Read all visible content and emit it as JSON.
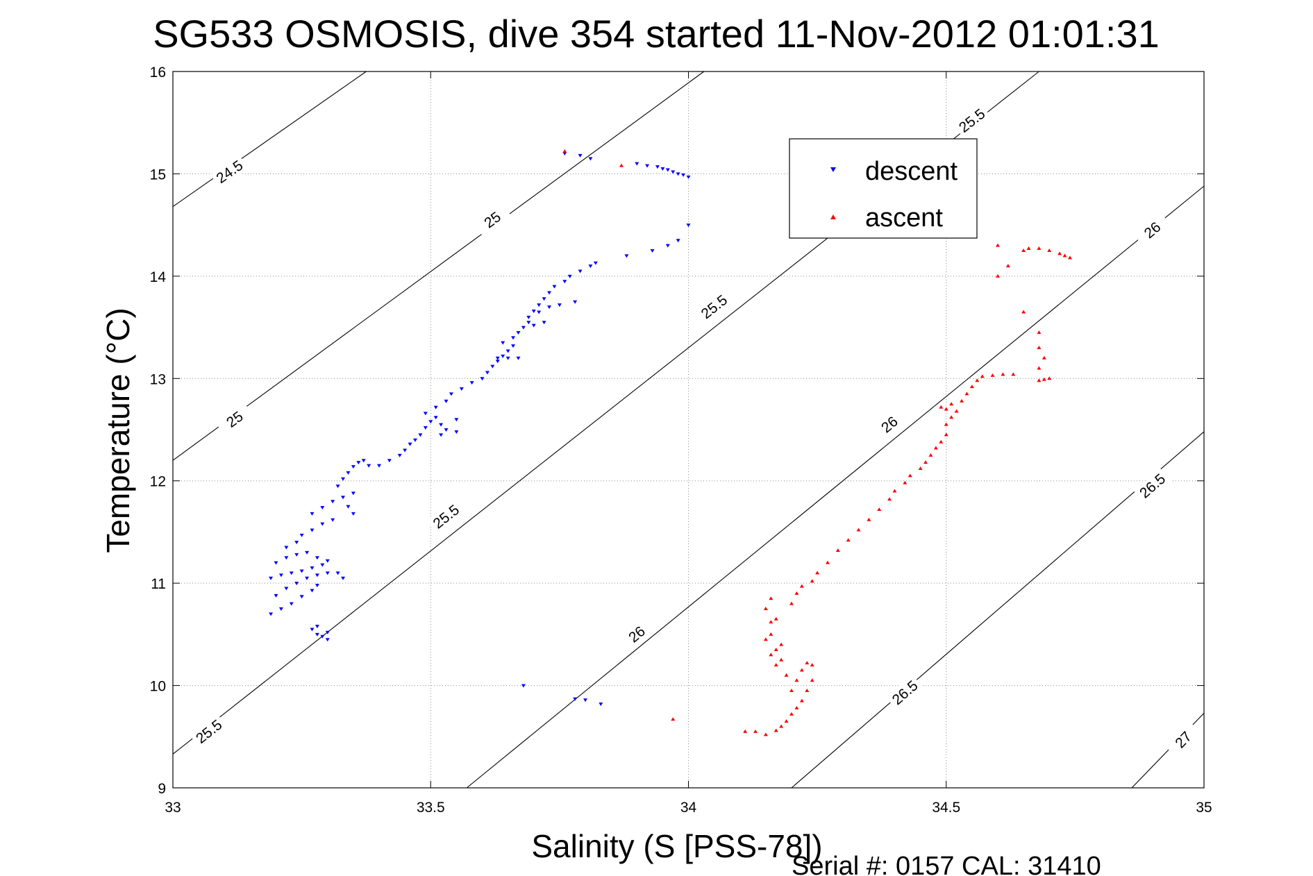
{
  "chart_data": {
    "type": "scatter",
    "title": "SG533 OSMOSIS, dive 354 started 11-Nov-2012 01:01:31",
    "xlabel": "Salinity (S [PSS-78])",
    "ylabel": "Temperature (°C)",
    "footer": "Serial #: 0157  CAL: 31410",
    "xlim": [
      33,
      35
    ],
    "ylim": [
      9,
      16
    ],
    "x_ticks": [
      "33",
      "33.5",
      "34",
      "34.5",
      "35"
    ],
    "x_tick_values": [
      33,
      33.5,
      34,
      34.5,
      35
    ],
    "y_ticks": [
      "9",
      "10",
      "11",
      "12",
      "13",
      "14",
      "15",
      "16"
    ],
    "y_tick_values": [
      9,
      10,
      11,
      12,
      13,
      14,
      15,
      16
    ],
    "grid": true,
    "legend_position": "top-right",
    "legend": [
      {
        "name": "descent",
        "color": "#0000ff",
        "marker": "triangle-down"
      },
      {
        "name": "ascent",
        "color": "#ff0000",
        "marker": "triangle-up"
      }
    ],
    "contour_color": "#000000",
    "contours": [
      {
        "p1": [
          33.0,
          14.68
        ],
        "p2": [
          33.375,
          16.0
        ],
        "labels": [
          {
            "text": "24.5",
            "at": [
              33.11,
              15.02
            ]
          }
        ]
      },
      {
        "p1": [
          33.0,
          12.2
        ],
        "p2": [
          34.03,
          16.0
        ],
        "labels": [
          {
            "text": "25",
            "at": [
              33.12,
              12.6
            ]
          },
          {
            "text": "25",
            "at": [
              33.62,
              14.55
            ]
          }
        ]
      },
      {
        "p1": [
          33.0,
          9.33
        ],
        "p2": [
          34.68,
          16.0
        ],
        "labels": [
          {
            "text": "25.5",
            "at": [
              33.07,
              9.55
            ]
          },
          {
            "text": "25.5",
            "at": [
              33.53,
              11.65
            ]
          },
          {
            "text": "25.5",
            "at": [
              34.05,
              13.7
            ]
          },
          {
            "text": "25.5",
            "at": [
              34.55,
              15.52
            ]
          }
        ]
      },
      {
        "p1": [
          33.57,
          9.0
        ],
        "p2": [
          35.0,
          14.88
        ],
        "labels": [
          {
            "text": "26",
            "at": [
              33.9,
              10.5
            ]
          },
          {
            "text": "26",
            "at": [
              34.39,
              12.55
            ]
          },
          {
            "text": "26",
            "at": [
              34.9,
              14.45
            ]
          }
        ]
      },
      {
        "p1": [
          34.2,
          9.0
        ],
        "p2": [
          35.0,
          12.48
        ],
        "labels": [
          {
            "text": "26.5",
            "at": [
              34.42,
              9.93
            ]
          },
          {
            "text": "26.5",
            "at": [
              34.9,
              11.95
            ]
          }
        ]
      },
      {
        "p1": [
          34.86,
          9.0
        ],
        "p2": [
          35.0,
          9.73
        ],
        "labels": [
          {
            "text": "27",
            "at": [
              34.96,
              9.47
            ]
          }
        ]
      }
    ],
    "series": [
      {
        "name": "descent",
        "color": "#0000ff",
        "marker": "triangle-down",
        "points": [
          [
            33.19,
            10.7
          ],
          [
            33.21,
            10.75
          ],
          [
            33.23,
            10.8
          ],
          [
            33.25,
            10.87
          ],
          [
            33.27,
            10.93
          ],
          [
            33.28,
            10.98
          ],
          [
            33.2,
            10.88
          ],
          [
            33.22,
            10.95
          ],
          [
            33.24,
            11.0
          ],
          [
            33.26,
            11.05
          ],
          [
            33.28,
            11.08
          ],
          [
            33.3,
            11.1
          ],
          [
            33.19,
            11.05
          ],
          [
            33.21,
            11.08
          ],
          [
            33.23,
            11.1
          ],
          [
            33.25,
            11.12
          ],
          [
            33.27,
            11.15
          ],
          [
            33.29,
            11.18
          ],
          [
            33.2,
            11.2
          ],
          [
            33.22,
            11.25
          ],
          [
            33.24,
            11.28
          ],
          [
            33.26,
            11.3
          ],
          [
            33.28,
            11.25
          ],
          [
            33.3,
            11.22
          ],
          [
            33.32,
            11.1
          ],
          [
            33.33,
            11.05
          ],
          [
            33.22,
            11.35
          ],
          [
            33.24,
            11.4
          ],
          [
            33.25,
            11.47
          ],
          [
            33.27,
            11.52
          ],
          [
            33.29,
            11.58
          ],
          [
            33.31,
            11.62
          ],
          [
            33.27,
            11.68
          ],
          [
            33.29,
            11.74
          ],
          [
            33.31,
            11.8
          ],
          [
            33.33,
            11.84
          ],
          [
            33.35,
            11.88
          ],
          [
            33.34,
            11.75
          ],
          [
            33.35,
            11.68
          ],
          [
            33.27,
            10.55
          ],
          [
            33.28,
            10.5
          ],
          [
            33.29,
            10.48
          ],
          [
            33.28,
            10.58
          ],
          [
            33.3,
            10.52
          ],
          [
            33.3,
            10.45
          ],
          [
            33.32,
            11.95
          ],
          [
            33.33,
            12.02
          ],
          [
            33.34,
            12.08
          ],
          [
            33.35,
            12.14
          ],
          [
            33.36,
            12.18
          ],
          [
            33.37,
            12.2
          ],
          [
            33.38,
            12.15
          ],
          [
            33.4,
            12.15
          ],
          [
            33.42,
            12.2
          ],
          [
            33.44,
            12.25
          ],
          [
            33.45,
            12.3
          ],
          [
            33.46,
            12.36
          ],
          [
            33.47,
            12.4
          ],
          [
            33.48,
            12.45
          ],
          [
            33.49,
            12.52
          ],
          [
            33.5,
            12.58
          ],
          [
            33.51,
            12.62
          ],
          [
            33.52,
            12.55
          ],
          [
            33.53,
            12.5
          ],
          [
            33.55,
            12.6
          ],
          [
            33.49,
            12.66
          ],
          [
            33.51,
            12.72
          ],
          [
            33.53,
            12.78
          ],
          [
            33.54,
            12.85
          ],
          [
            33.56,
            12.9
          ],
          [
            33.58,
            12.96
          ],
          [
            33.6,
            13.0
          ],
          [
            33.61,
            13.06
          ],
          [
            33.62,
            13.12
          ],
          [
            33.63,
            13.17
          ],
          [
            33.64,
            13.22
          ],
          [
            33.65,
            13.27
          ],
          [
            33.66,
            13.32
          ],
          [
            33.64,
            13.35
          ],
          [
            33.66,
            13.4
          ],
          [
            33.67,
            13.45
          ],
          [
            33.68,
            13.5
          ],
          [
            33.69,
            13.55
          ],
          [
            33.7,
            13.52
          ],
          [
            33.72,
            13.55
          ],
          [
            33.69,
            13.6
          ],
          [
            33.7,
            13.66
          ],
          [
            33.71,
            13.72
          ],
          [
            33.72,
            13.78
          ],
          [
            33.73,
            13.84
          ],
          [
            33.74,
            13.9
          ],
          [
            33.76,
            13.95
          ],
          [
            33.77,
            14.0
          ],
          [
            33.79,
            14.05
          ],
          [
            33.81,
            14.1
          ],
          [
            33.82,
            14.13
          ],
          [
            33.63,
            13.2
          ],
          [
            33.65,
            13.2
          ],
          [
            33.67,
            13.2
          ],
          [
            33.71,
            13.65
          ],
          [
            33.73,
            13.7
          ],
          [
            33.75,
            13.72
          ],
          [
            33.78,
            13.75
          ],
          [
            33.52,
            12.45
          ],
          [
            33.55,
            12.48
          ],
          [
            33.76,
            15.2
          ],
          [
            33.79,
            15.18
          ],
          [
            33.81,
            15.15
          ],
          [
            33.9,
            15.1
          ],
          [
            33.92,
            15.08
          ],
          [
            33.94,
            15.07
          ],
          [
            33.95,
            15.05
          ],
          [
            33.96,
            15.04
          ],
          [
            33.97,
            15.02
          ],
          [
            33.98,
            15.0
          ],
          [
            33.99,
            14.99
          ],
          [
            34.0,
            14.97
          ],
          [
            33.88,
            14.2
          ],
          [
            33.93,
            14.25
          ],
          [
            33.96,
            14.3
          ],
          [
            33.98,
            14.35
          ],
          [
            34.0,
            14.5
          ],
          [
            33.68,
            10.0
          ],
          [
            33.78,
            9.87
          ],
          [
            33.8,
            9.86
          ],
          [
            33.83,
            9.82
          ]
        ]
      },
      {
        "name": "ascent",
        "color": "#ff0000",
        "marker": "triangle-up",
        "points": [
          [
            34.11,
            9.55
          ],
          [
            34.13,
            9.55
          ],
          [
            34.15,
            9.52
          ],
          [
            34.17,
            9.56
          ],
          [
            34.18,
            9.6
          ],
          [
            34.19,
            9.65
          ],
          [
            34.2,
            9.72
          ],
          [
            34.21,
            9.78
          ],
          [
            34.22,
            9.85
          ],
          [
            34.23,
            9.95
          ],
          [
            34.24,
            10.05
          ],
          [
            34.24,
            10.2
          ],
          [
            34.23,
            10.22
          ],
          [
            34.22,
            10.15
          ],
          [
            34.21,
            10.05
          ],
          [
            34.2,
            9.95
          ],
          [
            34.19,
            10.1
          ],
          [
            34.18,
            10.25
          ],
          [
            34.17,
            10.35
          ],
          [
            34.16,
            10.5
          ],
          [
            34.16,
            10.62
          ],
          [
            34.15,
            10.75
          ],
          [
            34.16,
            10.85
          ],
          [
            34.17,
            10.65
          ],
          [
            34.15,
            10.45
          ],
          [
            34.16,
            10.3
          ],
          [
            34.17,
            10.2
          ],
          [
            34.18,
            10.4
          ],
          [
            34.2,
            10.8
          ],
          [
            34.21,
            10.9
          ],
          [
            34.22,
            10.97
          ],
          [
            34.24,
            11.02
          ],
          [
            34.25,
            11.1
          ],
          [
            34.27,
            11.2
          ],
          [
            34.29,
            11.32
          ],
          [
            34.31,
            11.42
          ],
          [
            34.33,
            11.52
          ],
          [
            34.35,
            11.62
          ],
          [
            34.37,
            11.72
          ],
          [
            34.39,
            11.82
          ],
          [
            34.4,
            11.9
          ],
          [
            34.42,
            11.98
          ],
          [
            34.43,
            12.05
          ],
          [
            34.45,
            12.12
          ],
          [
            34.46,
            12.18
          ],
          [
            34.47,
            12.25
          ],
          [
            34.48,
            12.32
          ],
          [
            34.49,
            12.38
          ],
          [
            34.5,
            12.45
          ],
          [
            34.5,
            12.55
          ],
          [
            34.51,
            12.62
          ],
          [
            34.52,
            12.68
          ],
          [
            34.5,
            12.7
          ],
          [
            34.49,
            12.72
          ],
          [
            34.51,
            12.75
          ],
          [
            34.53,
            12.78
          ],
          [
            34.54,
            12.85
          ],
          [
            34.55,
            12.92
          ],
          [
            34.56,
            12.98
          ],
          [
            34.57,
            13.02
          ],
          [
            34.59,
            13.03
          ],
          [
            34.61,
            13.04
          ],
          [
            34.63,
            13.04
          ],
          [
            34.68,
            12.98
          ],
          [
            34.69,
            12.99
          ],
          [
            34.7,
            13.0
          ],
          [
            34.68,
            13.1
          ],
          [
            34.69,
            13.2
          ],
          [
            34.68,
            13.3
          ],
          [
            34.68,
            13.45
          ],
          [
            34.65,
            14.25
          ],
          [
            34.66,
            14.27
          ],
          [
            34.68,
            14.27
          ],
          [
            34.7,
            14.25
          ],
          [
            34.72,
            14.22
          ],
          [
            34.74,
            14.18
          ],
          [
            34.73,
            14.2
          ],
          [
            34.6,
            14.0
          ],
          [
            34.6,
            14.3
          ],
          [
            34.62,
            14.1
          ],
          [
            34.65,
            13.65
          ],
          [
            33.76,
            15.22
          ],
          [
            33.87,
            15.08
          ],
          [
            33.97,
            9.67
          ]
        ]
      }
    ]
  }
}
